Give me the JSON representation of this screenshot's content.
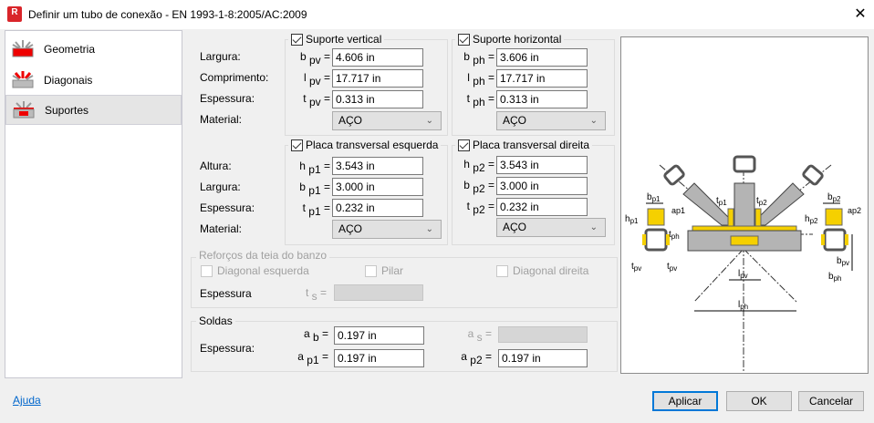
{
  "window": {
    "title": "Definir um tubo de conexão - EN 1993-1-8:2005/AC:2009",
    "app_icon": "R",
    "close_icon": "✕"
  },
  "sidebar": {
    "items": [
      {
        "label": "Geometria",
        "selected": false
      },
      {
        "label": "Diagonais",
        "selected": false
      },
      {
        "label": "Suportes",
        "selected": true
      }
    ]
  },
  "labels": {
    "largura": "Largura:",
    "comprimento": "Comprimento:",
    "espessura": "Espessura:",
    "material": "Material:",
    "altura": "Altura:",
    "espessura_plain": "Espessura"
  },
  "suporte_vertical": {
    "title": "Suporte vertical",
    "checked": true,
    "b": {
      "sym": "b",
      "sub": "pv",
      "value": "4.606 in"
    },
    "l": {
      "sym": "l",
      "sub": "pv",
      "value": "17.717 in"
    },
    "t": {
      "sym": "t",
      "sub": "pv",
      "value": "0.313 in"
    },
    "material": "AÇO"
  },
  "suporte_horizontal": {
    "title": "Suporte horizontal",
    "checked": true,
    "b": {
      "sym": "b",
      "sub": "ph",
      "value": "3.606 in"
    },
    "l": {
      "sym": "l",
      "sub": "ph",
      "value": "17.717 in"
    },
    "t": {
      "sym": "t",
      "sub": "ph",
      "value": "0.313 in"
    },
    "material": "AÇO"
  },
  "placa_esquerda": {
    "title": "Placa transversal esquerda",
    "checked": true,
    "h": {
      "sym": "h",
      "sub": "p1",
      "value": "3.543 in"
    },
    "b": {
      "sym": "b",
      "sub": "p1",
      "value": "3.000 in"
    },
    "t": {
      "sym": "t",
      "sub": "p1",
      "value": "0.232 in"
    },
    "material": "AÇO"
  },
  "placa_direita": {
    "title": "Placa transversal direita",
    "checked": true,
    "h": {
      "sym": "h",
      "sub": "p2",
      "value": "3.543 in"
    },
    "b": {
      "sym": "b",
      "sub": "p2",
      "value": "3.000 in"
    },
    "t": {
      "sym": "t",
      "sub": "p2",
      "value": "0.232 in"
    },
    "material": "AÇO"
  },
  "reforcos": {
    "title": "Reforços da teia do banzo",
    "diagonal_esquerda": "Diagonal esquerda",
    "pilar": "Pilar",
    "diagonal_direita": "Diagonal direita",
    "ts": {
      "sym": "t",
      "sub": "s"
    },
    "value": ""
  },
  "soldas": {
    "title": "Soldas",
    "ab": {
      "sym": "a",
      "sub": "b",
      "value": "0.197 in"
    },
    "as": {
      "sym": "a",
      "sub": "s",
      "value": ""
    },
    "ap1": {
      "sym": "a",
      "sub": "p1",
      "value": "0.197 in"
    },
    "ap2": {
      "sym": "a",
      "sub": "p2",
      "value": "0.197 in"
    }
  },
  "diagram": {
    "labels": [
      "bp1",
      "hp1",
      "ap1",
      "tp1",
      "tp2",
      "bp2",
      "hp2",
      "ap2",
      "tph",
      "tpv",
      "tpv",
      "bpv",
      "bph",
      "lpv",
      "lph"
    ]
  },
  "footer": {
    "help": "Ajuda",
    "apply": "Aplicar",
    "ok": "OK",
    "cancel": "Cancelar"
  },
  "colors": {
    "accent": "#0078d7",
    "plate": "#f5d000",
    "steel": "#b4b4b4",
    "brand": "#d9252a"
  }
}
